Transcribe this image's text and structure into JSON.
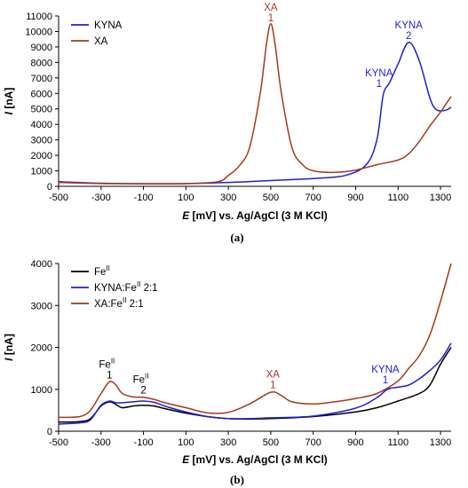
{
  "chart_data": [
    {
      "type": "line",
      "panel_label": "(a)",
      "xlabel": "E [mV] vs. Ag/AgCl (3 M KCl)",
      "xlabel_symbol": "E",
      "xlabel_rest": " [mV] vs. Ag/AgCl (3 M KCl)",
      "ylabel": "I [nA]",
      "ylabel_symbol": "I",
      "ylabel_rest": " [nA]",
      "xlim": [
        -500,
        1350
      ],
      "ylim": [
        0,
        11000
      ],
      "xticks": [
        "-500",
        "-300",
        "-100",
        "100",
        "300",
        "500",
        "700",
        "900",
        "1100",
        "1300"
      ],
      "yticks": [
        "0",
        "1000",
        "2000",
        "3000",
        "4000",
        "5000",
        "6000",
        "7000",
        "8000",
        "9000",
        "10000",
        "11000"
      ],
      "legend_position": "top-left",
      "series": [
        {
          "name": "KYNA",
          "color": "#1f1fd0",
          "points": [
            [
              -500,
              300
            ],
            [
              -300,
              200
            ],
            [
              -100,
              160
            ],
            [
              100,
              170
            ],
            [
              300,
              250
            ],
            [
              500,
              370
            ],
            [
              700,
              500
            ],
            [
              850,
              700
            ],
            [
              950,
              1400
            ],
            [
              1000,
              3000
            ],
            [
              1030,
              5900
            ],
            [
              1060,
              6700
            ],
            [
              1100,
              7900
            ],
            [
              1150,
              9300
            ],
            [
              1200,
              8100
            ],
            [
              1250,
              5700
            ],
            [
              1280,
              4950
            ],
            [
              1320,
              4900
            ],
            [
              1350,
              5100
            ]
          ]
        },
        {
          "name": "XA",
          "color": "#a8381e",
          "points": [
            [
              -500,
              250
            ],
            [
              -300,
              180
            ],
            [
              -100,
              170
            ],
            [
              100,
              180
            ],
            [
              250,
              300
            ],
            [
              300,
              700
            ],
            [
              350,
              1300
            ],
            [
              400,
              2500
            ],
            [
              450,
              6000
            ],
            [
              480,
              9200
            ],
            [
              500,
              10500
            ],
            [
              520,
              9200
            ],
            [
              550,
              6000
            ],
            [
              600,
              2500
            ],
            [
              650,
              1400
            ],
            [
              700,
              1000
            ],
            [
              800,
              900
            ],
            [
              900,
              1050
            ],
            [
              1000,
              1400
            ],
            [
              1100,
              1700
            ],
            [
              1150,
              2100
            ],
            [
              1200,
              2900
            ],
            [
              1250,
              3900
            ],
            [
              1300,
              4800
            ],
            [
              1350,
              5800
            ]
          ]
        }
      ],
      "annotations": [
        {
          "lines": [
            "XA",
            "1"
          ],
          "x": 500,
          "y": 10550,
          "color": "#a8381e"
        },
        {
          "lines": [
            "KYNA",
            "1"
          ],
          "x": 1010,
          "y": 6300,
          "color": "#1f1fd0"
        },
        {
          "lines": [
            "KYNA",
            "2"
          ],
          "x": 1150,
          "y": 9400,
          "color": "#1f1fd0"
        }
      ]
    },
    {
      "type": "line",
      "panel_label": "(b)",
      "xlabel": "E [mV] vs. Ag/AgCl (3 M KCl)",
      "xlabel_symbol": "E",
      "xlabel_rest": " [mV] vs. Ag/AgCl (3 M KCl)",
      "ylabel": "I [nA]",
      "ylabel_symbol": "I",
      "ylabel_rest": " [nA]",
      "xlim": [
        -500,
        1350
      ],
      "ylim": [
        0,
        4000
      ],
      "xticks": [
        "-500",
        "-300",
        "-100",
        "100",
        "300",
        "500",
        "700",
        "900",
        "1100",
        "1300"
      ],
      "yticks": [
        "0",
        "1000",
        "2000",
        "3000",
        "4000"
      ],
      "legend_position": "top-left",
      "series": [
        {
          "name": "Feᴵᴵ",
          "name_base": "Fe",
          "name_sup": "II",
          "name_after": "",
          "color": "#000000",
          "points": [
            [
              -500,
              220
            ],
            [
              -400,
              230
            ],
            [
              -350,
              300
            ],
            [
              -300,
              600
            ],
            [
              -260,
              700
            ],
            [
              -230,
              640
            ],
            [
              -200,
              560
            ],
            [
              -150,
              600
            ],
            [
              -100,
              620
            ],
            [
              -50,
              600
            ],
            [
              0,
              540
            ],
            [
              100,
              430
            ],
            [
              200,
              350
            ],
            [
              300,
              300
            ],
            [
              400,
              290
            ],
            [
              500,
              300
            ],
            [
              700,
              350
            ],
            [
              900,
              460
            ],
            [
              1000,
              560
            ],
            [
              1100,
              720
            ],
            [
              1200,
              900
            ],
            [
              1250,
              1100
            ],
            [
              1300,
              1600
            ],
            [
              1350,
              2000
            ]
          ]
        },
        {
          "name": "KYNA:Feᴵᴵ 2:1",
          "name_base": "KYNA:Fe",
          "name_sup": "II",
          "name_after": " 2:1",
          "color": "#1f1fd0",
          "points": [
            [
              -500,
              170
            ],
            [
              -400,
              200
            ],
            [
              -350,
              270
            ],
            [
              -300,
              620
            ],
            [
              -260,
              720
            ],
            [
              -230,
              680
            ],
            [
              -200,
              680
            ],
            [
              -150,
              700
            ],
            [
              -100,
              720
            ],
            [
              -50,
              690
            ],
            [
              0,
              600
            ],
            [
              100,
              460
            ],
            [
              200,
              350
            ],
            [
              300,
              300
            ],
            [
              400,
              300
            ],
            [
              500,
              320
            ],
            [
              700,
              360
            ],
            [
              900,
              550
            ],
            [
              1000,
              800
            ],
            [
              1050,
              1000
            ],
            [
              1100,
              1050
            ],
            [
              1150,
              1100
            ],
            [
              1200,
              1250
            ],
            [
              1250,
              1450
            ],
            [
              1300,
              1700
            ],
            [
              1350,
              2100
            ]
          ]
        },
        {
          "name": "XA:Feᴵᴵ 2:1",
          "name_base": "XA:Fe",
          "name_sup": "II",
          "name_after": " 2:1",
          "color": "#a8381e",
          "points": [
            [
              -500,
              330
            ],
            [
              -400,
              350
            ],
            [
              -350,
              500
            ],
            [
              -300,
              900
            ],
            [
              -260,
              1180
            ],
            [
              -230,
              1100
            ],
            [
              -200,
              900
            ],
            [
              -150,
              820
            ],
            [
              -100,
              810
            ],
            [
              -50,
              760
            ],
            [
              0,
              680
            ],
            [
              100,
              560
            ],
            [
              200,
              440
            ],
            [
              300,
              450
            ],
            [
              400,
              650
            ],
            [
              500,
              930
            ],
            [
              550,
              850
            ],
            [
              600,
              700
            ],
            [
              700,
              650
            ],
            [
              800,
              700
            ],
            [
              900,
              780
            ],
            [
              1000,
              900
            ],
            [
              1100,
              1200
            ],
            [
              1150,
              1500
            ],
            [
              1200,
              1800
            ],
            [
              1250,
              2300
            ],
            [
              1300,
              3100
            ],
            [
              1350,
              4000
            ]
          ]
        }
      ],
      "annotations": [
        {
          "base": "Fe",
          "sup": "II",
          "sub": "1",
          "x": -260,
          "y": 1220,
          "color": "#000000"
        },
        {
          "base": "Fe",
          "sup": "II",
          "sub": "2",
          "x": -100,
          "y": 860,
          "color": "#000000"
        },
        {
          "lines": [
            "XA",
            "1"
          ],
          "x": 510,
          "y": 980,
          "color": "#a8381e"
        },
        {
          "lines": [
            "KYNA",
            "1"
          ],
          "x": 1040,
          "y": 1100,
          "color": "#1f1fd0"
        }
      ]
    }
  ]
}
